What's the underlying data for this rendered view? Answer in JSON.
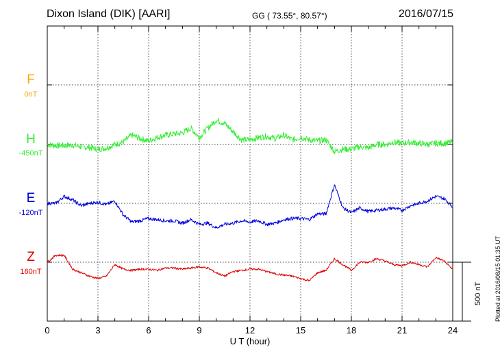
{
  "header": {
    "station": "Dixon Island (DIK)  [AARI]",
    "coords": "GG ( 73.55°,  80.57°)",
    "date": "2016/07/15"
  },
  "side": {
    "plotted": "Plotted at 2016/08/15 01:35 UT",
    "scale_label": "500 nT"
  },
  "colors": {
    "F": "#ffa500",
    "H": "#33ee33",
    "E": "#0000dd",
    "Z": "#dd0000"
  },
  "chart_data": {
    "type": "line",
    "xlabel": "U T (hour)",
    "xlim": [
      0,
      24
    ],
    "xticks": [
      0,
      3,
      6,
      9,
      12,
      15,
      18,
      21,
      24
    ],
    "scale_bar_nT": 500,
    "series": [
      {
        "name": "F",
        "baseline": "0nT",
        "color": "#ffa500",
        "x": [],
        "values": []
      },
      {
        "name": "H",
        "baseline": "-450nT",
        "color": "#33ee33",
        "x": [
          0,
          0.5,
          1,
          1.5,
          2,
          2.5,
          3,
          3.5,
          4,
          4.5,
          5,
          5.5,
          6,
          6.5,
          7,
          7.5,
          8,
          8.5,
          9,
          9.5,
          10,
          10.5,
          11,
          11.5,
          12,
          12.5,
          13,
          13.5,
          14,
          14.5,
          15,
          15.5,
          16,
          16.5,
          17,
          17.5,
          18,
          18.5,
          19,
          19.5,
          20,
          20.5,
          21,
          21.5,
          22,
          22.5,
          23,
          23.5,
          24
        ],
        "values": [
          -440,
          -450,
          -450,
          -445,
          -460,
          -465,
          -480,
          -470,
          -440,
          -420,
          -360,
          -390,
          -410,
          -380,
          -360,
          -350,
          -340,
          -300,
          -380,
          -300,
          -230,
          -260,
          -330,
          -400,
          -400,
          -380,
          -370,
          -390,
          -360,
          -400,
          -380,
          -400,
          -410,
          -400,
          -500,
          -480,
          -480,
          -460,
          -470,
          -440,
          -440,
          -420,
          -430,
          -420,
          -430,
          -440,
          -430,
          -430,
          -420
        ]
      },
      {
        "name": "E",
        "baseline": "-120nT",
        "color": "#0000dd",
        "x": [
          0,
          0.5,
          1,
          1.5,
          2,
          2.5,
          3,
          3.5,
          4,
          4.5,
          5,
          5.5,
          6,
          6.5,
          7,
          7.5,
          8,
          8.5,
          9,
          9.5,
          10,
          10.5,
          11,
          11.5,
          12,
          12.5,
          13,
          13.5,
          14,
          14.5,
          15,
          15.5,
          16,
          16.5,
          17,
          17.5,
          18,
          18.5,
          19,
          19.5,
          20,
          20.5,
          21,
          21.5,
          22,
          22.5,
          23,
          23.5,
          24
        ],
        "values": [
          80,
          80,
          140,
          110,
          60,
          80,
          90,
          70,
          100,
          -20,
          -80,
          -70,
          -50,
          -60,
          -70,
          -70,
          -90,
          -60,
          -100,
          -90,
          -130,
          -100,
          -90,
          -70,
          -80,
          -70,
          -100,
          -90,
          -60,
          -50,
          -50,
          -60,
          -10,
          -10,
          240,
          40,
          0,
          40,
          10,
          20,
          30,
          40,
          20,
          60,
          80,
          100,
          140,
          120,
          50
        ]
      },
      {
        "name": "Z",
        "baseline": "160nT",
        "color": "#dd0000",
        "x": [
          0,
          0.5,
          1,
          1.5,
          2,
          2.5,
          3,
          3.5,
          4,
          4.5,
          5,
          5.5,
          6,
          6.5,
          7,
          7.5,
          8,
          8.5,
          9,
          9.5,
          10,
          10.5,
          11,
          11.5,
          12,
          12.5,
          13,
          13.5,
          14,
          14.5,
          15,
          15.5,
          16,
          16.5,
          17,
          17.5,
          18,
          18.5,
          19,
          19.5,
          20,
          20.5,
          21,
          21.5,
          22,
          22.5,
          23,
          23.5,
          24
        ],
        "values": [
          60,
          120,
          120,
          0,
          -30,
          -60,
          -80,
          -60,
          40,
          0,
          -10,
          0,
          0,
          -10,
          10,
          10,
          0,
          10,
          20,
          10,
          -30,
          -60,
          -20,
          -10,
          0,
          0,
          -20,
          -40,
          -50,
          -60,
          -80,
          -100,
          -30,
          -10,
          90,
          40,
          -10,
          60,
          60,
          90,
          70,
          40,
          30,
          60,
          40,
          20,
          100,
          70,
          0
        ]
      }
    ]
  }
}
